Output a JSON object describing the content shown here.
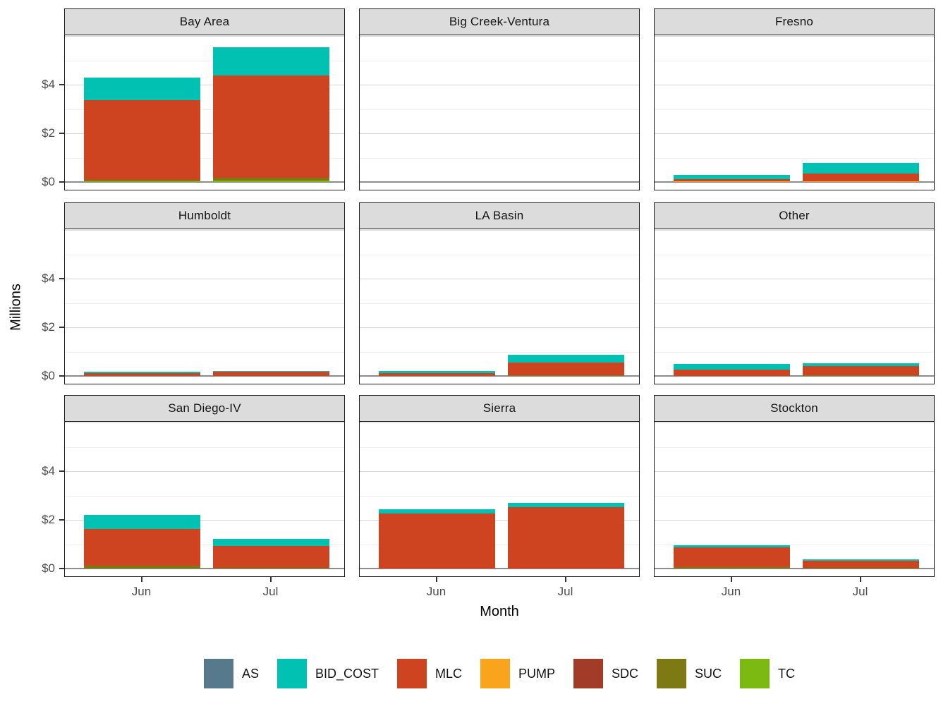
{
  "chart_data": {
    "type": "bar",
    "stacked": true,
    "facet_grid": "3x3",
    "xlabel": "Month",
    "ylabel": "Millions",
    "categories": [
      "Jun",
      "Jul"
    ],
    "y_ticks": [
      0,
      2,
      4
    ],
    "y_tick_labels": [
      "$0",
      "$2",
      "$4"
    ],
    "y_minor_ticks": [
      1,
      3,
      5
    ],
    "y_major_unlabeled": [
      6
    ],
    "ylim": [
      -0.35,
      6.03
    ],
    "units": "millions of dollars",
    "legend_position": "bottom",
    "legend_entries": [
      "AS",
      "BID_COST",
      "MLC",
      "PUMP",
      "SDC",
      "SUC",
      "TC"
    ],
    "series_colors": {
      "AS": "#56798C",
      "BID_COST": "#00C1B2",
      "MLC": "#CE4420",
      "PUMP": "#F9A41C",
      "SDC": "#A23B27",
      "SUC": "#7E7A13",
      "TC": "#7CBA12"
    },
    "stack_order_bottom_to_top": [
      "TC",
      "SUC",
      "SDC",
      "PUMP",
      "MLC",
      "BID_COST",
      "AS"
    ],
    "facets": [
      {
        "title": "Bay Area",
        "values": {
          "Jun": {
            "TC": 0.04,
            "SUC": 0.05,
            "MLC": 3.27,
            "BID_COST": 0.94
          },
          "Jul": {
            "TC": 0.05,
            "SUC": 0.13,
            "MLC": 4.21,
            "BID_COST": 1.14
          }
        }
      },
      {
        "title": "Big Creek-Ventura",
        "values": {
          "Jun": {},
          "Jul": {}
        }
      },
      {
        "title": "Fresno",
        "values": {
          "Jun": {
            "PUMP": 0.04,
            "MLC": 0.09,
            "BID_COST": 0.17
          },
          "Jul": {
            "PUMP": 0.03,
            "MLC": 0.32,
            "BID_COST": 0.44
          }
        }
      },
      {
        "title": "Humboldt",
        "values": {
          "Jun": {
            "MLC": 0.13,
            "BID_COST": 0.03
          },
          "Jul": {
            "MLC": 0.17,
            "BID_COST": 0.03
          }
        }
      },
      {
        "title": "LA Basin",
        "values": {
          "Jun": {
            "MLC": 0.13,
            "BID_COST": 0.07
          },
          "Jul": {
            "SUC": 0.02,
            "MLC": 0.53,
            "BID_COST": 0.31
          }
        }
      },
      {
        "title": "Other",
        "values": {
          "Jun": {
            "MLC": 0.27,
            "BID_COST": 0.22
          },
          "Jul": {
            "SUC": 0.02,
            "MLC": 0.39,
            "BID_COST": 0.1
          }
        }
      },
      {
        "title": "San Diego-IV",
        "values": {
          "Jun": {
            "SUC": 0.11,
            "MLC": 1.52,
            "BID_COST": 0.56
          },
          "Jul": {
            "SUC": 0.04,
            "MLC": 0.9,
            "BID_COST": 0.29
          }
        }
      },
      {
        "title": "Sierra",
        "values": {
          "Jun": {
            "MLC": 2.27,
            "BID_COST": 0.17
          },
          "Jul": {
            "MLC": 2.53,
            "BID_COST": 0.17
          }
        }
      },
      {
        "title": "Stockton",
        "values": {
          "Jun": {
            "SUC": 0.05,
            "MLC": 0.81,
            "BID_COST": 0.1
          },
          "Jul": {
            "SUC": 0.02,
            "MLC": 0.29,
            "BID_COST": 0.07
          }
        }
      }
    ],
    "style_colors": {
      "strip_background": "#DCDCDC",
      "panel_border": "#1F1F1F",
      "grid_major": "#D5D5D5",
      "grid_minor": "#EFEFEF",
      "zero_line": "#8C8C8C",
      "tick_label": "#4D4D4D"
    }
  }
}
